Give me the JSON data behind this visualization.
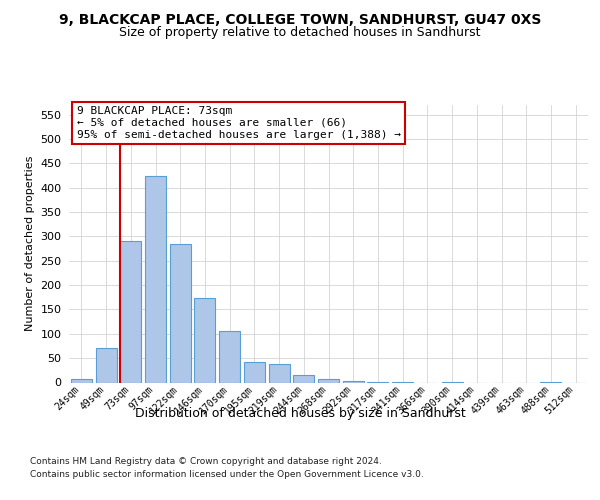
{
  "title1": "9, BLACKCAP PLACE, COLLEGE TOWN, SANDHURST, GU47 0XS",
  "title2": "Size of property relative to detached houses in Sandhurst",
  "xlabel": "Distribution of detached houses by size in Sandhurst",
  "ylabel": "Number of detached properties",
  "categories": [
    "24sqm",
    "49sqm",
    "73sqm",
    "97sqm",
    "122sqm",
    "146sqm",
    "170sqm",
    "195sqm",
    "219sqm",
    "244sqm",
    "268sqm",
    "292sqm",
    "317sqm",
    "341sqm",
    "366sqm",
    "390sqm",
    "414sqm",
    "439sqm",
    "463sqm",
    "488sqm",
    "512sqm"
  ],
  "values": [
    7,
    70,
    290,
    425,
    285,
    173,
    105,
    43,
    38,
    16,
    8,
    4,
    2,
    2,
    0,
    2,
    0,
    0,
    0,
    2,
    0
  ],
  "bar_color": "#aec6e8",
  "bar_edge_color": "#5a9fd4",
  "vline_color": "#cc0000",
  "vline_bar_index": 2,
  "annotation_line1": "9 BLACKCAP PLACE: 73sqm",
  "annotation_line2": "← 5% of detached houses are smaller (66)",
  "annotation_line3": "95% of semi-detached houses are larger (1,388) →",
  "annotation_box_facecolor": "#ffffff",
  "annotation_box_edgecolor": "#cc0000",
  "footer1": "Contains HM Land Registry data © Crown copyright and database right 2024.",
  "footer2": "Contains public sector information licensed under the Open Government Licence v3.0.",
  "ylim": [
    0,
    570
  ],
  "yticks": [
    0,
    50,
    100,
    150,
    200,
    250,
    300,
    350,
    400,
    450,
    500,
    550
  ],
  "background_color": "#ffffff",
  "grid_color": "#cccccc",
  "fig_width": 6.0,
  "fig_height": 5.0,
  "dpi": 100
}
